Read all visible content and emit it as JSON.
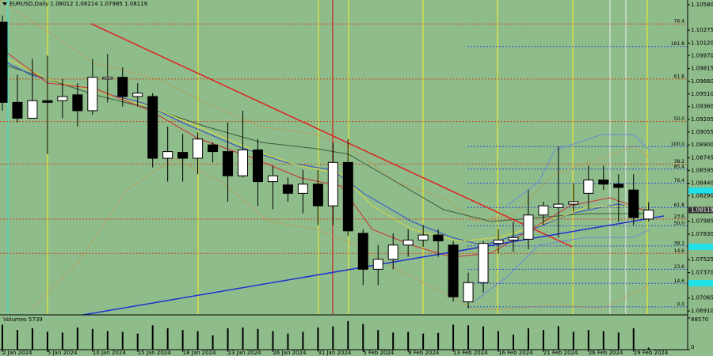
{
  "chart_data": [
    {
      "type": "candlestick",
      "title": "EURUSD,Daily",
      "categories": [
        "2 Jan 2024",
        null,
        null,
        "5 Jan 2024",
        null,
        null,
        "10 Jan 2024",
        null,
        null,
        "15 Jan 2024",
        null,
        null,
        "18 Jan 2024",
        null,
        null,
        "23 Jan 2024",
        null,
        null,
        "26 Jan 2024",
        null,
        null,
        "31 Jan 2024",
        null,
        null,
        "5 Feb 2024",
        null,
        null,
        "8 Feb 2024",
        null,
        null,
        "13 Feb 2024",
        null,
        null,
        "16 Feb 2024",
        null,
        null,
        "21 Feb 2024",
        null,
        null,
        "26 Feb 2024",
        null,
        null,
        "29 Feb 2024",
        null
      ],
      "open": [
        1.1037,
        1.0941,
        1.0922,
        1.0943,
        1.0943,
        1.095,
        1.0931,
        1.0969,
        1.0971,
        1.0948,
        1.0948,
        1.0874,
        1.0881,
        1.0874,
        1.089,
        1.0882,
        1.0853,
        1.0884,
        1.0846,
        1.0842,
        1.0832,
        1.0843,
        1.0817,
        1.0869,
        1.0784,
        1.0741,
        1.0753,
        1.077,
        1.0776,
        1.0782,
        1.077,
        1.0702,
        1.0725,
        1.0772,
        1.0776,
        1.0777,
        1.0806,
        1.0815,
        1.0819,
        1.0832,
        1.0848,
        1.0843,
        1.0836,
        1.08012
      ],
      "high": [
        1.1045,
        1.0974,
        1.0993,
        1.0997,
        1.0969,
        1.0964,
        1.0993,
        1.0999,
        1.0983,
        1.0964,
        1.0952,
        1.0912,
        1.0903,
        1.0905,
        1.0893,
        1.0917,
        1.0931,
        1.0897,
        1.0865,
        1.0851,
        1.086,
        1.086,
        1.0893,
        1.0897,
        1.0789,
        1.077,
        1.0784,
        1.0789,
        1.0794,
        1.0789,
        1.0775,
        1.0737,
        1.0775,
        1.0789,
        1.0798,
        1.0836,
        1.0822,
        1.0888,
        1.0844,
        1.0865,
        1.0865,
        1.0855,
        1.0855,
        1.08214
      ],
      "low": [
        1.0931,
        1.0917,
        1.0922,
        1.0879,
        1.0922,
        1.0912,
        1.0926,
        1.0941,
        1.0936,
        1.0936,
        1.0863,
        1.0846,
        1.0846,
        1.0855,
        1.0869,
        1.0822,
        1.0851,
        1.0817,
        1.0813,
        1.0822,
        1.0808,
        1.0794,
        1.0794,
        1.0781,
        1.0722,
        1.0722,
        1.0741,
        1.0756,
        1.0768,
        1.0756,
        1.0702,
        1.0694,
        1.0713,
        1.076,
        1.0762,
        1.0765,
        1.0794,
        1.0779,
        1.081,
        1.0813,
        1.0836,
        1.0798,
        1.0794,
        1.07985
      ],
      "close": [
        1.0941,
        1.0922,
        1.0943,
        1.0941,
        1.0948,
        1.0931,
        1.0971,
        1.0971,
        1.0948,
        1.0952,
        1.0874,
        1.0882,
        1.0874,
        1.0897,
        1.0882,
        1.0853,
        1.0884,
        1.0846,
        1.0853,
        1.0832,
        1.0843,
        1.0817,
        1.0869,
        1.0787,
        1.0741,
        1.0753,
        1.077,
        1.0776,
        1.0782,
        1.0775,
        1.0708,
        1.0725,
        1.0772,
        1.0776,
        1.0779,
        1.0806,
        1.0817,
        1.0819,
        1.0822,
        1.0848,
        1.0843,
        1.0839,
        1.0803,
        1.08119
      ],
      "up_color": "#ffffff",
      "down_color": "#000000",
      "ylim": [
        1.06873,
        1.10608
      ],
      "yticks": [
        {
          "value": 1.1058,
          "label": "1.10580"
        },
        {
          "value": 1.10275,
          "label": "1.10275"
        },
        {
          "value": 1.1012,
          "label": "1.10120"
        },
        {
          "value": 1.0997,
          "label": "1.09970"
        },
        {
          "value": 1.09815,
          "label": "1.09815"
        },
        {
          "value": 1.0966,
          "label": "1.09660"
        },
        {
          "value": 1.0951,
          "label": "1.09510"
        },
        {
          "value": 1.0936,
          "label": "1.09360"
        },
        {
          "value": 1.09205,
          "label": "1.09205"
        },
        {
          "value": 1.09055,
          "label": "1.09055"
        },
        {
          "value": 1.089,
          "label": "1.08900"
        },
        {
          "value": 1.08745,
          "label": "1.08745"
        },
        {
          "value": 1.08595,
          "label": "1.08595"
        },
        {
          "value": 1.0844,
          "label": "1.08440"
        },
        {
          "value": 1.0829,
          "label": "1.08290"
        },
        {
          "value": 1.07985,
          "label": "1.07985"
        },
        {
          "value": 1.0783,
          "label": "1.07830"
        },
        {
          "value": 1.07525,
          "label": "1.07525"
        },
        {
          "value": 1.0737,
          "label": "1.07370"
        },
        {
          "value": 1.07065,
          "label": "1.07065"
        },
        {
          "value": 1.0691,
          "label": "1.06910"
        }
      ],
      "fib_red": [
        {
          "label": "76.4",
          "value": 1.1035
        },
        {
          "label": "61.8",
          "value": 1.0969
        },
        {
          "label": "50.0",
          "value": 1.0918
        },
        {
          "label": "38.2",
          "value": 1.0867
        },
        {
          "label": "23.6",
          "value": 1.0801
        },
        {
          "label": "14.6",
          "value": 1.076
        }
      ],
      "fib_red_color": "#d0451b",
      "fib_blue": [
        {
          "label": "161.8",
          "value": 1.1008
        },
        {
          "label": "100.0",
          "value": 1.0888
        },
        {
          "label": "85.4",
          "value": 1.0861
        },
        {
          "label": "76.4",
          "value": 1.0844
        },
        {
          "label": "61.8",
          "value": 1.0815
        },
        {
          "label": "50.0",
          "value": 1.0793
        },
        {
          "label": "38.2",
          "value": 1.0769
        },
        {
          "label": "23.6",
          "value": 1.0741
        },
        {
          "label": "14.6",
          "value": 1.0724
        },
        {
          "label": "0.0",
          "value": 1.0696
        }
      ],
      "fib_blue_color": "#2b4fd6"
    },
    {
      "type": "bar",
      "title": "Volumes",
      "values": [
        70000,
        55000,
        60000,
        50000,
        48000,
        62000,
        58000,
        52000,
        50000,
        45000,
        68000,
        60000,
        55000,
        52000,
        40000,
        60000,
        62000,
        58000,
        52000,
        45000,
        50000,
        62000,
        65000,
        80000,
        72000,
        55000,
        48000,
        50000,
        45000,
        47000,
        70000,
        68000,
        65000,
        52000,
        42000,
        60000,
        55000,
        66000,
        50000,
        55000,
        52000,
        48000,
        60000,
        5739
      ],
      "color": "#000000",
      "ylim": [
        0,
        88570
      ],
      "yticks": [
        88570,
        0
      ]
    }
  ]
}
